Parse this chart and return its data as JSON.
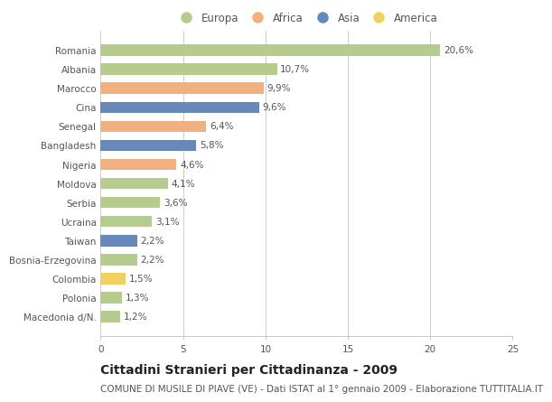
{
  "categories": [
    "Romania",
    "Albania",
    "Marocco",
    "Cina",
    "Senegal",
    "Bangladesh",
    "Nigeria",
    "Moldova",
    "Serbia",
    "Ucraina",
    "Taiwan",
    "Bosnia-Erzegovina",
    "Colombia",
    "Polonia",
    "Macedonia d/N."
  ],
  "values": [
    20.6,
    10.7,
    9.9,
    9.6,
    6.4,
    5.8,
    4.6,
    4.1,
    3.6,
    3.1,
    2.2,
    2.2,
    1.5,
    1.3,
    1.2
  ],
  "labels": [
    "20,6%",
    "10,7%",
    "9,9%",
    "9,6%",
    "6,4%",
    "5,8%",
    "4,6%",
    "4,1%",
    "3,6%",
    "3,1%",
    "2,2%",
    "2,2%",
    "1,5%",
    "1,3%",
    "1,2%"
  ],
  "continents": [
    "Europa",
    "Europa",
    "Africa",
    "Asia",
    "Africa",
    "Asia",
    "Africa",
    "Europa",
    "Europa",
    "Europa",
    "Asia",
    "Europa",
    "America",
    "Europa",
    "Europa"
  ],
  "continent_colors": {
    "Europa": "#b5cc8e",
    "Africa": "#f0b080",
    "Asia": "#6688bb",
    "America": "#f0d060"
  },
  "legend_order": [
    "Europa",
    "Africa",
    "Asia",
    "America"
  ],
  "title": "Cittadini Stranieri per Cittadinanza - 2009",
  "subtitle": "COMUNE DI MUSILE DI PIAVE (VE) - Dati ISTAT al 1° gennaio 2009 - Elaborazione TUTTITALIA.IT",
  "xlim": [
    0,
    25
  ],
  "xticks": [
    0,
    5,
    10,
    15,
    20,
    25
  ],
  "background_color": "#ffffff",
  "grid_color": "#cccccc",
  "bar_height": 0.6,
  "title_fontsize": 10,
  "subtitle_fontsize": 7.5,
  "label_fontsize": 7.5,
  "tick_fontsize": 7.5,
  "legend_fontsize": 8.5
}
